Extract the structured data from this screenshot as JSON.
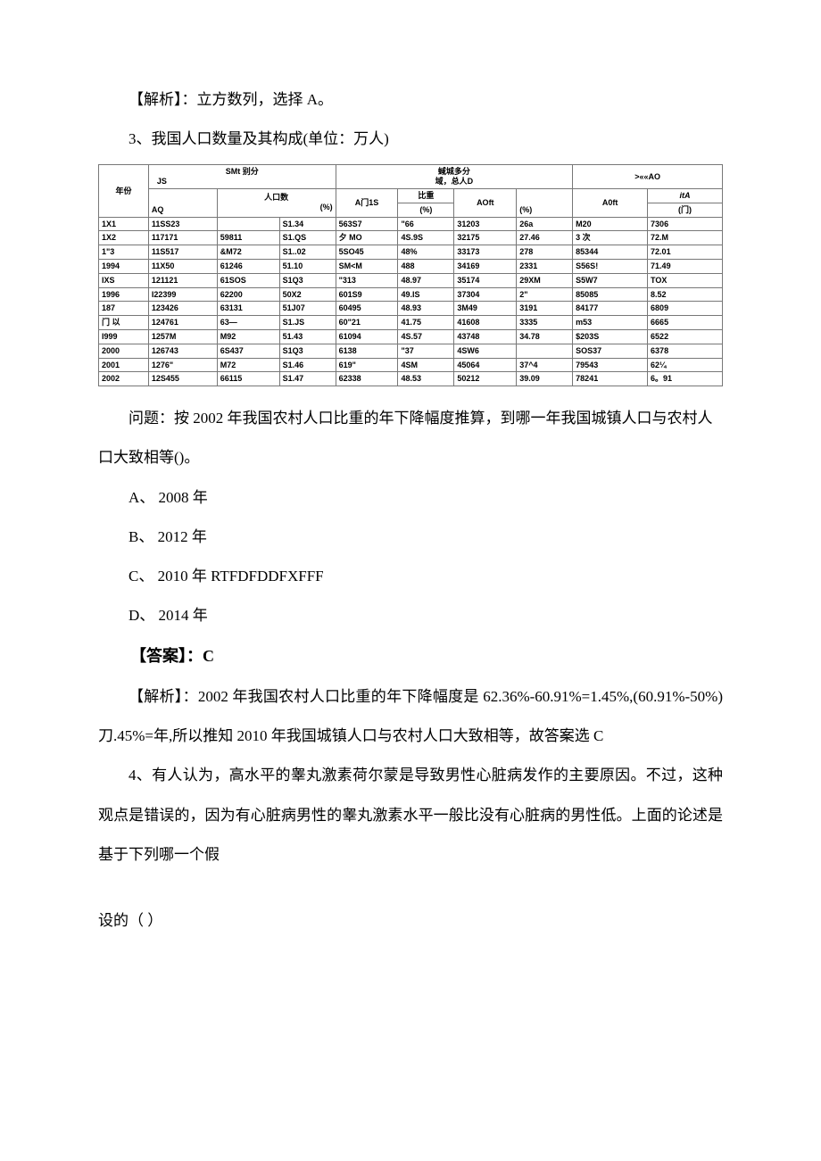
{
  "analysis_1": "【解析】：立方数列，选择 A。",
  "q3_title": "3、我国人口数量及其构成(单位：万人)",
  "table": {
    "header": {
      "col1": "年份",
      "group1": "SMt 别分",
      "js": "JS",
      "aq": "AQ",
      "group2": "蜮城多分",
      "group2b": "域，总人D",
      "group3": ">««AO",
      "sub_pop": "人口数",
      "sub_pct": "(%)",
      "sub_a1s": "A门1S",
      "sub_bz": "比重",
      "sub_bz2": "(%)",
      "sub_aoft": "AOft",
      "sub_pct2": "(%)",
      "sub_aeft": "A0ft",
      "sub_ita": "itA",
      "sub_ita2": "(门)"
    },
    "rows": [
      [
        "1X1",
        "11SS23",
        "",
        "S1.34",
        "563S7",
        "\"66",
        "31203",
        "26a",
        "M20",
        "7306"
      ],
      [
        "1X2",
        "117171",
        "59811",
        "S1.QS",
        "夕 MO",
        "4S.9S",
        "32175",
        "27.46",
        "3 次",
        "72.M"
      ],
      [
        "1\"3",
        "11S517",
        "&M72",
        "S1..02",
        "5SO45",
        "48%",
        "33173",
        "278",
        "85344",
        "72.01"
      ],
      [
        "1994",
        "11X50",
        "61246",
        "51.10",
        "SM<M",
        "488",
        "34169",
        "2331",
        "S56S!",
        "71.49"
      ],
      [
        "IXS",
        "121121",
        "61SOS",
        "S1Q3",
        "\"313",
        "48.97",
        "35174",
        "29XM",
        "S5W7",
        "TOX"
      ],
      [
        "1996",
        "I22399",
        "62200",
        "50X2",
        "601S9",
        "49.IS",
        "37304",
        "2\"",
        "85085",
        "8.52"
      ],
      [
        "187",
        "123426",
        "63131",
        "51J07",
        "60495",
        "48.93",
        "3M49",
        "3191",
        "84177",
        "6809"
      ],
      [
        "门 以",
        "124761",
        "63—",
        "S1.JS",
        "60\"21",
        "41.75",
        "41608",
        "3335",
        "m53",
        "6665"
      ],
      [
        "I999",
        "1257M",
        "M92",
        "51.43",
        "61094",
        "4S.57",
        "43748",
        "34.78",
        "$203S",
        "6522"
      ],
      [
        "2000",
        "126743",
        "6S437",
        "S1Q3",
        "6138",
        "\"37",
        "4SW6",
        "",
        "SOS37",
        "6378"
      ],
      [
        "2001",
        "1276\"",
        "M72",
        "S1.46",
        "619\"",
        "4SM",
        "45064",
        "37^4",
        "79543",
        "62¼"
      ],
      [
        "2002",
        "12S455",
        "66115",
        "S1.47",
        "62338",
        "48.53",
        "50212",
        "39.09",
        "78241",
        "6。91"
      ]
    ]
  },
  "q3_question": "问题：按 2002 年我国农村人口比重的年下降幅度推算，到哪一年我国城镇人口与农村人口大致相等()。",
  "q3_options": {
    "A": "A、 2008 年",
    "B": "B、 2012 年",
    "C": "C、 2010 年 RTFDFDDFXFFF",
    "D": "D、 2014 年"
  },
  "q3_answer": "【答案】：C",
  "q3_analysis": "【解析】：2002 年我国农村人口比重的年下降幅度是 62.36%-60.91%=1.45%,(60.91%-50%)刀.45%=年,所以推知 2010 年我国城镇人口与农村人口大致相等，故答案选 C",
  "q4_stem": "4、有人认为，高水平的睾丸激素荷尔蒙是导致男性心脏病发作的主要原因。不过，这种观点是错误的，因为有心脏病男性的睾丸激素水平一般比没有心脏病的男性低。上面的论述是基于下列哪一个假",
  "q4_tail": "设的（        ）"
}
